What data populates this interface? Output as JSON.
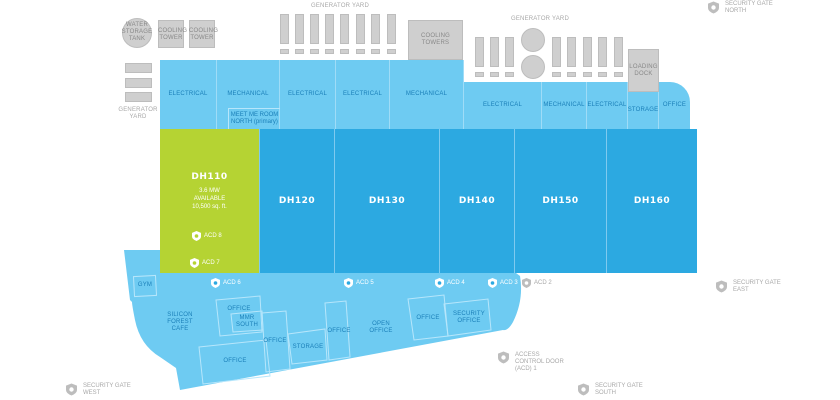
{
  "map": {
    "colors": {
      "data_hall": "#2ca9e1",
      "support": "#6ecbf2",
      "selected": "#b5d333",
      "infrastructure": "#cfcfcf",
      "label_gray": "#a8a8a8",
      "label_blue": "#1a7fb8"
    },
    "infrastructure": {
      "water_storage_tank": "WATER STORAGE TANK",
      "cooling_tower_1": "COOLING TOWER",
      "cooling_tower_2": "COOLING TOWER",
      "generator_yard_west": "GENERATOR YARD",
      "generator_yard_north": "GENERATOR YARD",
      "cooling_towers": "COOLING TOWERS",
      "generator_yard_northeast": "GENERATOR YARD",
      "loading_dock": "LOADING DOCK"
    },
    "support_rooms_north": [
      {
        "label": "ELECTRICAL"
      },
      {
        "label": "MECHANICAL"
      },
      {
        "label": "ELECTRICAL"
      },
      {
        "label": "ELECTRICAL"
      },
      {
        "label": "MECHANICAL"
      },
      {
        "label": "ELECTRICAL"
      },
      {
        "label": "MECHANICAL"
      },
      {
        "label": "ELECTRICAL"
      },
      {
        "label": "STORAGE"
      },
      {
        "label": "OFFICE"
      }
    ],
    "meet_me_room_north": {
      "line1": "MEET ME ROOM",
      "line2": "NORTH (primary)"
    },
    "data_halls": [
      {
        "id": "DH110",
        "selected": true,
        "power": "3.6 MW",
        "status": "AVAILABLE",
        "area": "10,500 sq. ft.",
        "acd": "ACD 8"
      },
      {
        "id": "DH120",
        "selected": false
      },
      {
        "id": "DH130",
        "selected": false
      },
      {
        "id": "DH140",
        "selected": false
      },
      {
        "id": "DH150",
        "selected": false
      },
      {
        "id": "DH160",
        "selected": false
      }
    ],
    "south_rooms": {
      "gym": "GYM",
      "cafe": "SILICON FOREST CAFE",
      "office_1": "OFFICE",
      "mmr_south": "MMR SOUTH",
      "office_2": "OFFICE",
      "office_3": "OFFICE",
      "storage": "STORAGE",
      "office_4": "OFFICE",
      "open_office": "OPEN OFFICE",
      "office_5": "OFFICE",
      "security_office": "SECURITY OFFICE"
    },
    "access_control_doors": {
      "acd1": "ACCESS CONTROL DOOR (ACD) 1",
      "acd2": "ACD 2",
      "acd3": "ACD 3",
      "acd4": "ACD 4",
      "acd5": "ACD 5",
      "acd6": "ACD 6",
      "acd7": "ACD 7"
    },
    "security_gates": {
      "north": {
        "line1": "SECURITY GATE",
        "line2": "NORTH"
      },
      "east": {
        "line1": "SECURITY GATE",
        "line2": "EAST"
      },
      "south": {
        "line1": "SECURITY GATE",
        "line2": "SOUTH"
      },
      "west": {
        "line1": "SECURITY GATE",
        "line2": "WEST"
      }
    }
  }
}
